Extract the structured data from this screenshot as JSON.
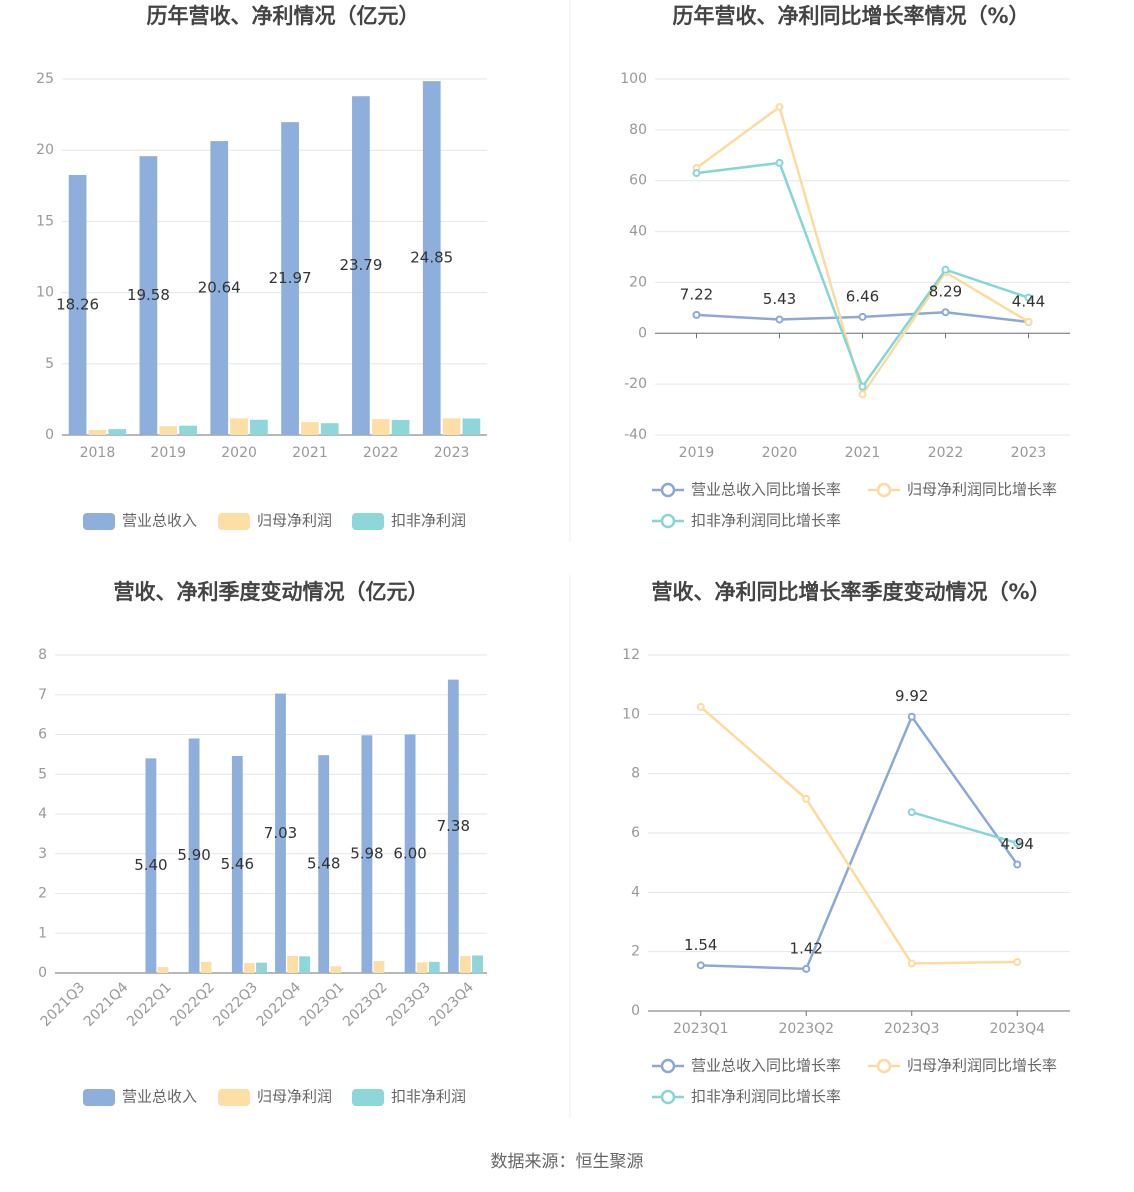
{
  "chart_data": [
    {
      "type": "bar",
      "title": "历年营收、净利情况（亿元）",
      "categories": [
        "2018",
        "2019",
        "2020",
        "2021",
        "2022",
        "2023"
      ],
      "series": [
        {
          "name": "营业总收入",
          "color": "#8eaedb",
          "values": [
            18.26,
            19.58,
            20.64,
            21.97,
            23.79,
            24.85
          ],
          "value_labels": [
            "18.26",
            "19.58",
            "20.64",
            "21.97",
            "23.79",
            "24.85"
          ]
        },
        {
          "name": "归母净利润",
          "color": "#fddfa6",
          "values": [
            0.35,
            0.62,
            1.17,
            0.9,
            1.12,
            1.17
          ]
        },
        {
          "name": "扣非净利润",
          "color": "#8dd6d9",
          "values": [
            0.41,
            0.65,
            1.07,
            0.83,
            1.05,
            1.16
          ]
        }
      ],
      "ylim": [
        0,
        25
      ],
      "yticks": [
        0,
        5,
        10,
        15,
        20,
        25
      ],
      "grid": true
    },
    {
      "type": "line",
      "title": "历年营收、净利同比增长率情况（%）",
      "categories": [
        "2019",
        "2020",
        "2021",
        "2022",
        "2023"
      ],
      "series": [
        {
          "name": "营业总收入同比增长率",
          "color": "#8ba8d8",
          "values": [
            7.22,
            5.43,
            6.46,
            8.29,
            4.44
          ],
          "value_labels": [
            "7.22",
            "5.43",
            "6.46",
            "8.29",
            "4.44"
          ]
        },
        {
          "name": "归母净利润同比增长率",
          "color": "#fddb9c",
          "values": [
            65,
            89,
            -24,
            24,
            4.5
          ]
        },
        {
          "name": "扣非净利润同比增长率",
          "color": "#86d6d6",
          "values": [
            63,
            67,
            -21,
            25,
            14
          ]
        }
      ],
      "ylim": [
        -40,
        100
      ],
      "yticks": [
        -40,
        -20,
        0,
        20,
        40,
        60,
        80,
        100
      ],
      "grid": true
    },
    {
      "type": "bar",
      "title": "营收、净利季度变动情况（亿元）",
      "categories": [
        "2021Q3",
        "2021Q4",
        "2022Q1",
        "2022Q2",
        "2022Q3",
        "2022Q4",
        "2023Q1",
        "2023Q2",
        "2023Q3",
        "2023Q4"
      ],
      "series": [
        {
          "name": "营业总收入",
          "color": "#8eaedb",
          "values": [
            null,
            null,
            5.4,
            5.9,
            5.46,
            7.03,
            5.48,
            5.98,
            6.0,
            7.38
          ],
          "value_labels": [
            null,
            null,
            "5.40",
            "5.90",
            "5.46",
            "7.03",
            "5.48",
            "5.98",
            "6.00",
            "7.38"
          ]
        },
        {
          "name": "归母净利润",
          "color": "#fddfa6",
          "values": [
            null,
            null,
            0.15,
            0.28,
            0.25,
            0.43,
            0.17,
            0.3,
            0.27,
            0.43
          ]
        },
        {
          "name": "扣非净利润",
          "color": "#8dd6d9",
          "values": [
            null,
            null,
            null,
            null,
            0.26,
            0.42,
            null,
            null,
            0.28,
            0.44
          ]
        }
      ],
      "ylim": [
        0,
        8
      ],
      "yticks": [
        0,
        1,
        2,
        3,
        4,
        5,
        6,
        7,
        8
      ],
      "grid": true
    },
    {
      "type": "line",
      "title": "营收、净利同比增长率季度变动情况（%）",
      "categories": [
        "2023Q1",
        "2023Q2",
        "2023Q3",
        "2023Q4"
      ],
      "series": [
        {
          "name": "营业总收入同比增长率",
          "color": "#8ba8d8",
          "values": [
            1.54,
            1.42,
            9.92,
            4.94
          ],
          "value_labels": [
            "1.54",
            "1.42",
            "9.92",
            "4.94"
          ]
        },
        {
          "name": "归母净利润同比增长率",
          "color": "#fddb9c",
          "values": [
            10.25,
            7.15,
            1.6,
            1.65
          ]
        },
        {
          "name": "扣非净利润同比增长率",
          "color": "#86d6d6",
          "values": [
            null,
            null,
            6.7,
            5.66
          ]
        }
      ],
      "ylim": [
        0,
        12
      ],
      "yticks": [
        0,
        2,
        4,
        6,
        8,
        10,
        12
      ],
      "grid": true
    }
  ],
  "footer": "数据来源：恒生聚源"
}
